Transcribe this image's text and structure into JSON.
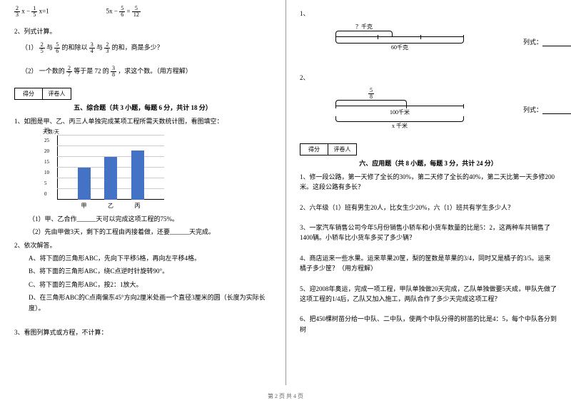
{
  "left": {
    "eq1": {
      "f1n": "2",
      "f1d": "3",
      "mid": "x −",
      "f2n": "1",
      "f2d": "5",
      "tail": "x=1"
    },
    "eq2": {
      "pre": "5x −",
      "f1n": "5",
      "f1d": "6",
      "eq": "=",
      "f2n": "5",
      "f2d": "12"
    },
    "item2_header": "2、列式计算。",
    "q1_pre": "（1）",
    "q1_f1n": "2",
    "q1_f1d": "5",
    "q1_t1": "与",
    "q1_f2n": "5",
    "q1_f2d": "6",
    "q1_t2": "的和除以",
    "q1_f3n": "3",
    "q1_f3d": "4",
    "q1_t3": "与",
    "q1_f4n": "2",
    "q1_f4d": "3",
    "q1_t4": "的和，商是多少？",
    "q2_pre": "（2）  一个数的",
    "q2_f1n": "2",
    "q2_f1d": "7",
    "q2_t1": "等于是 72 的",
    "q2_f2n": "3",
    "q2_f2d": "8",
    "q2_t2": "，求这个数。（用方程解）",
    "score_l": "得分",
    "score_r": "评卷人",
    "sec5_title": "五、综合题（共 3 小题，每题 6 分，共计 18 分）",
    "sec5_q1": "1、如图是甲、乙、丙三人单独完成某项工程所需天数统计图，看图填空：",
    "chart": {
      "ytitle": "天数/天",
      "yticks": [
        "0",
        "5",
        "10",
        "15",
        "20",
        "25",
        "30"
      ],
      "ymax": 30,
      "grid_color": "#cccccc",
      "bar_color": "#4472c4",
      "bars": [
        {
          "label": "甲",
          "value": 15
        },
        {
          "label": "乙",
          "value": 20
        },
        {
          "label": "丙",
          "value": 23
        }
      ]
    },
    "sec5_q1a": "（1）甲、乙合作______天可以完成这项工程的75%。",
    "sec5_q1b": "（2）先由甲做3天，剩下的工程由丙接着做，还要______天完成。",
    "sec5_q2": "2、依次解答。",
    "sec5_q2a": "A、将下面的三角形ABC，先向下平移5格，再向左平移4格。",
    "sec5_q2b": "B、将下面的三角形ABC，绕C点逆时针旋转90°。",
    "sec5_q2c": "C、将下面的三角形ABC，按2：1放大。",
    "sec5_q2d": "D、在三角形ABC的C点南偏东45°方向2厘米处画一个直径3厘米的圆（长度为实际长度）。",
    "sec5_q3": "3、看图列算式或方程，不计算："
  },
  "right": {
    "q1_num": "1、",
    "d1_top": "？千克",
    "d1_bottom": "60千克",
    "d1_label": "列式：",
    "q2_num": "2、",
    "d2_fn": "5",
    "d2_fd": "8",
    "d2_mid": "100千米",
    "d2_bottom": "x 千米",
    "d2_label": "列式：",
    "score_l": "得分",
    "score_r": "评卷人",
    "sec6_title": "六、应用题（共 8 小题，每题 3 分，共计 24 分）",
    "q1": "1、修一段公路，第一天修了全长的30%，第二天修了全长的40%，第二天比第一天多修200米。这段公路有多长？",
    "q2": "2、六年级（1）班有男生20人，比女生少20%，六（1）班共有学生多少人？",
    "q3": "3、一家汽车销售公司今年5月份销售小轿车和小货车数量的比是5：2，这两种车共销售了1400辆。小轿车比小货车多买了多少辆？",
    "q4": "4、商店运来一些水果。运来苹果20筐，梨的筐数是苹果的3/4，同时又是橘子的3/5。运来橘子多少筐？（用方程解）",
    "q5": "5、迎2008年奥运，完成一项工程，甲队单独做20天完成，乙队单独做要5天成，甲队先做了这项工程的1/4后，乙队又加入施工，两队合作了多少天完成这项工程？",
    "q6": "6、把450棵树苗分给一中队、二中队，使两个中队分得的树苗的比是4：5，每个中队各分到树"
  },
  "footer": "第 2 页 共 4 页"
}
